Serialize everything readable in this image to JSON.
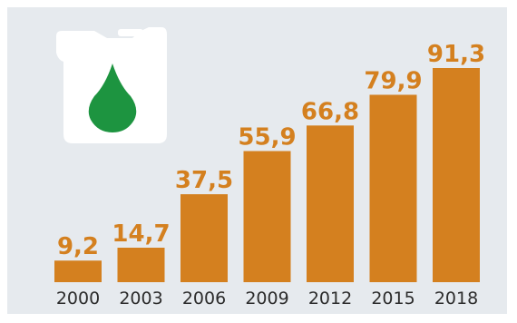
{
  "colors": {
    "background": "#e6eaee",
    "bar": "#d4801f",
    "value_text": "#d4801f",
    "axis_text": "#2c2c2c",
    "drop": "#1d9440",
    "canister": "#ffffff"
  },
  "icons": [
    "oil-canister-icon",
    "drop-icon"
  ],
  "chart_data": {
    "type": "bar",
    "title": "",
    "xlabel": "",
    "ylabel": "",
    "grid": false,
    "ylim": [
      0,
      91.3
    ],
    "categories": [
      "2000",
      "2003",
      "2006",
      "2009",
      "2012",
      "2015",
      "2018"
    ],
    "values": [
      9.2,
      14.7,
      37.5,
      55.9,
      66.8,
      79.9,
      91.3
    ],
    "value_labels": [
      "9,2",
      "14,7",
      "37,5",
      "55,9",
      "66,8",
      "79,9",
      "91,3"
    ]
  }
}
